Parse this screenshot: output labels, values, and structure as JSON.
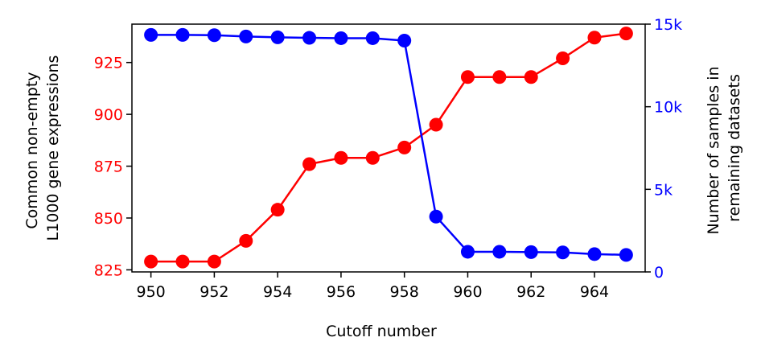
{
  "chart_data": {
    "type": "line",
    "x": [
      950,
      951,
      952,
      953,
      954,
      955,
      956,
      957,
      958,
      959,
      960,
      961,
      962,
      963,
      964,
      965
    ],
    "xlabel": "Cutoff number",
    "xlim": [
      949.4,
      965.6
    ],
    "xticks": [
      950,
      952,
      954,
      956,
      958,
      960,
      962,
      964
    ],
    "xtick_labels": [
      "950",
      "952",
      "954",
      "956",
      "958",
      "960",
      "962",
      "964"
    ],
    "y_left": {
      "label_lines": [
        "Common non-empty",
        "L1000 gene expressions"
      ],
      "ylim": [
        824,
        943.5
      ],
      "ticks": [
        825,
        850,
        875,
        900,
        925
      ],
      "tick_labels": [
        "825",
        "850",
        "875",
        "900",
        "925"
      ],
      "color": "#ff0000"
    },
    "y_right": {
      "label_lines": [
        "Number of samples in",
        "remaining datasets"
      ],
      "ylim": [
        0,
        15000
      ],
      "ticks": [
        0,
        5000,
        10000,
        15000
      ],
      "tick_labels": [
        "0",
        "5k",
        "10k",
        "15k"
      ],
      "color": "#0000ff"
    },
    "series": [
      {
        "axis": "left",
        "color": "#ff0000",
        "values": [
          829,
          829,
          829,
          839,
          854,
          876,
          879,
          879,
          884,
          895,
          918,
          918,
          918,
          927,
          937,
          939
        ]
      },
      {
        "axis": "right",
        "color": "#0000ff",
        "values": [
          14350,
          14350,
          14330,
          14250,
          14200,
          14170,
          14150,
          14150,
          14000,
          3350,
          1220,
          1220,
          1200,
          1180,
          1080,
          1030
        ]
      }
    ],
    "grid": false,
    "legend": "none"
  }
}
